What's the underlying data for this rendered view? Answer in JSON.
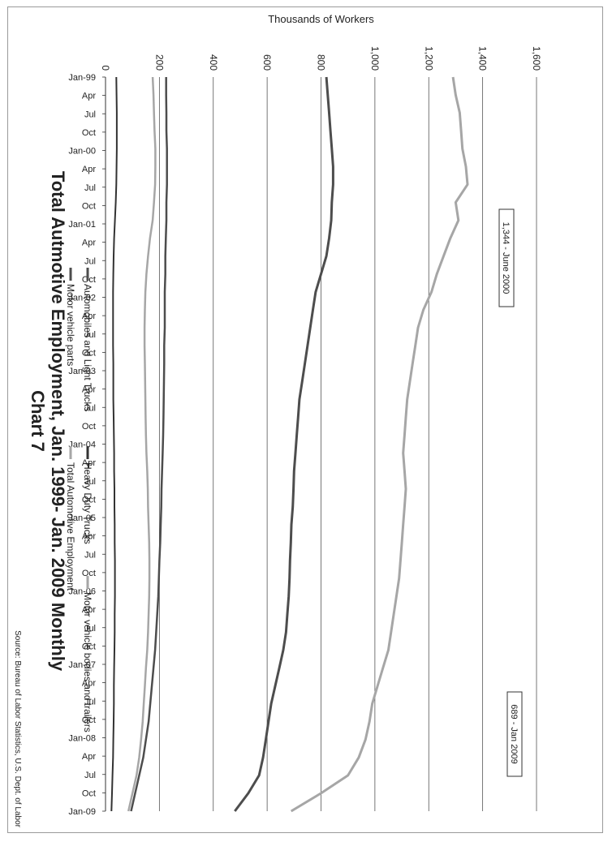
{
  "chart_data": {
    "type": "line",
    "orientation": "rotated-90-clockwise",
    "title": "Chart 7",
    "subtitle": "Total Autmotive Employment, Jan. 1999- Jan. 2009 Monthly",
    "ylabel": "Thousands of Workers",
    "ylim": [
      0,
      1600
    ],
    "yticks": [
      0,
      200,
      400,
      600,
      800,
      1000,
      1200,
      1400,
      1600
    ],
    "ytick_labels": [
      "0",
      "200",
      "400",
      "600",
      "800",
      "1,000",
      "1,200",
      "1,400",
      "1,600"
    ],
    "xtick_labels": [
      "Jan-99",
      "Apr",
      "Jul",
      "Oct",
      "Jan-00",
      "Apr",
      "Jul",
      "Oct",
      "Jan-01",
      "Apr",
      "Jul",
      "Oct",
      "Jan-02",
      "Apr",
      "Jul",
      "Oct",
      "Jan-03",
      "Apr",
      "Jul",
      "Oct",
      "Jan-04",
      "Apr",
      "Jul",
      "Oct",
      "Jan-05",
      "Apr",
      "Jul",
      "Oct",
      "Jan-06",
      "Apr",
      "Jul",
      "Oct",
      "Jan-07",
      "Apr",
      "Jul",
      "Oct",
      "Jan-08",
      "Apr",
      "Jul",
      "Oct",
      "Jan-09"
    ],
    "grid": true,
    "legend_position": "bottom",
    "source": "Source: Bureau of Labor Statistics, U.S. Dept. of Labor",
    "annotations": [
      {
        "text": "1,344 - June 2000",
        "date": "Jun-00",
        "value": 1344
      },
      {
        "text": "689 - Jan 2009",
        "date": "Jan-09",
        "value": 689
      }
    ],
    "x": [
      "Jan-99",
      "Apr-99",
      "Jul-99",
      "Oct-99",
      "Jan-00",
      "Apr-00",
      "Jun-00",
      "Jul-00",
      "Oct-00",
      "Jan-01",
      "Apr-01",
      "Jul-01",
      "Oct-01",
      "Jan-02",
      "Apr-02",
      "Jul-02",
      "Oct-02",
      "Jan-03",
      "Apr-03",
      "Jul-03",
      "Oct-03",
      "Jan-04",
      "Apr-04",
      "Jul-04",
      "Oct-04",
      "Jan-05",
      "Apr-05",
      "Jul-05",
      "Oct-05",
      "Jan-06",
      "Apr-06",
      "Jul-06",
      "Oct-06",
      "Jan-07",
      "Apr-07",
      "Jul-07",
      "Oct-07",
      "Jan-08",
      "Apr-08",
      "Jul-08",
      "Oct-08",
      "Jan-09"
    ],
    "series": [
      {
        "name": "Total Automotive Employment",
        "color": "#a6a6a6",
        "width": 3,
        "values": [
          1290,
          1300,
          1315,
          1320,
          1325,
          1338,
          1344,
          1300,
          1310,
          1280,
          1255,
          1230,
          1210,
          1180,
          1160,
          1150,
          1140,
          1130,
          1120,
          1115,
          1110,
          1105,
          1110,
          1115,
          1110,
          1105,
          1100,
          1095,
          1090,
          1080,
          1070,
          1060,
          1050,
          1030,
          1010,
          990,
          980,
          965,
          940,
          900,
          800,
          689
        ]
      },
      {
        "name": "Motor vehicle parts",
        "color": "#4d4d4d",
        "width": 3,
        "values": [
          820,
          825,
          830,
          835,
          840,
          845,
          845,
          840,
          838,
          830,
          820,
          800,
          780,
          770,
          760,
          750,
          740,
          730,
          720,
          715,
          710,
          705,
          700,
          698,
          695,
          690,
          688,
          685,
          683,
          680,
          675,
          670,
          660,
          645,
          630,
          615,
          605,
          595,
          585,
          570,
          530,
          480
        ]
      },
      {
        "name": "Automobiles and Light Trucks",
        "color": "#4d4d4d",
        "width": 2.5,
        "values": [
          225,
          225,
          226,
          226,
          228,
          228,
          228,
          226,
          226,
          224,
          222,
          222,
          220,
          220,
          220,
          218,
          218,
          217,
          216,
          215,
          214,
          212,
          210,
          208,
          207,
          205,
          203,
          200,
          198,
          196,
          192,
          188,
          184,
          178,
          172,
          166,
          160,
          150,
          140,
          125,
          110,
          95
        ]
      },
      {
        "name": "Motor vehicle bodies and trailers",
        "color": "#a6a6a6",
        "width": 2.5,
        "values": [
          175,
          178,
          180,
          182,
          185,
          185,
          184,
          180,
          175,
          165,
          158,
          152,
          148,
          146,
          145,
          145,
          146,
          147,
          148,
          149,
          150,
          152,
          155,
          157,
          158,
          160,
          162,
          163,
          163,
          162,
          160,
          158,
          155,
          150,
          146,
          142,
          138,
          132,
          125,
          115,
          100,
          85
        ]
      },
      {
        "name": "Heavy Duty Trucks",
        "color": "#333333",
        "width": 2,
        "values": [
          40,
          41,
          42,
          42,
          42,
          41,
          40,
          38,
          35,
          32,
          30,
          29,
          28,
          28,
          28,
          28,
          29,
          29,
          29,
          30,
          31,
          32,
          32,
          33,
          33,
          34,
          34,
          35,
          35,
          35,
          34,
          34,
          33,
          32,
          31,
          31,
          30,
          29,
          28,
          26,
          24,
          22
        ]
      }
    ]
  },
  "legend": [
    {
      "name": "Automobiles and Light Trucks",
      "color": "#4d4d4d"
    },
    {
      "name": "Heavy Duty Trucks",
      "color": "#333333"
    },
    {
      "name": "Motor vehicle bodies and trailers",
      "color": "#a6a6a6"
    },
    {
      "name": "Motor vehicle parts",
      "color": "#4d4d4d"
    },
    {
      "name": "Total Automotive Employment",
      "color": "#a6a6a6"
    }
  ]
}
